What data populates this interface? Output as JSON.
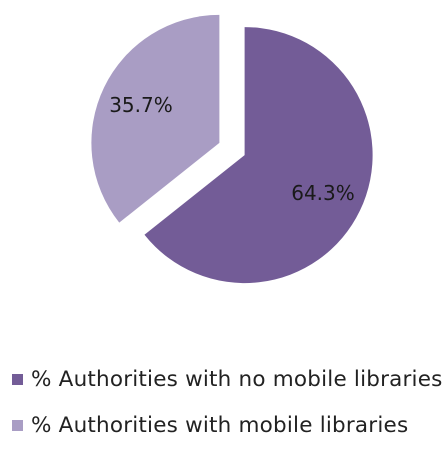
{
  "chart_data": {
    "type": "pie",
    "categories": [
      "% Authorities with no mobile libraries",
      "% Authorities with mobile libraries"
    ],
    "values": [
      64.3,
      35.7
    ],
    "data_labels": [
      "64.3%",
      "35.7%"
    ],
    "colors": [
      "#735c97",
      "#a99dc4"
    ],
    "exploded": true,
    "legend_position": "bottom-left"
  },
  "legend": {
    "items": [
      {
        "label": "% Authorities with no mobile libraries",
        "color": "#735c97"
      },
      {
        "label": "% Authorities with mobile libraries",
        "color": "#a99dc4"
      }
    ]
  }
}
